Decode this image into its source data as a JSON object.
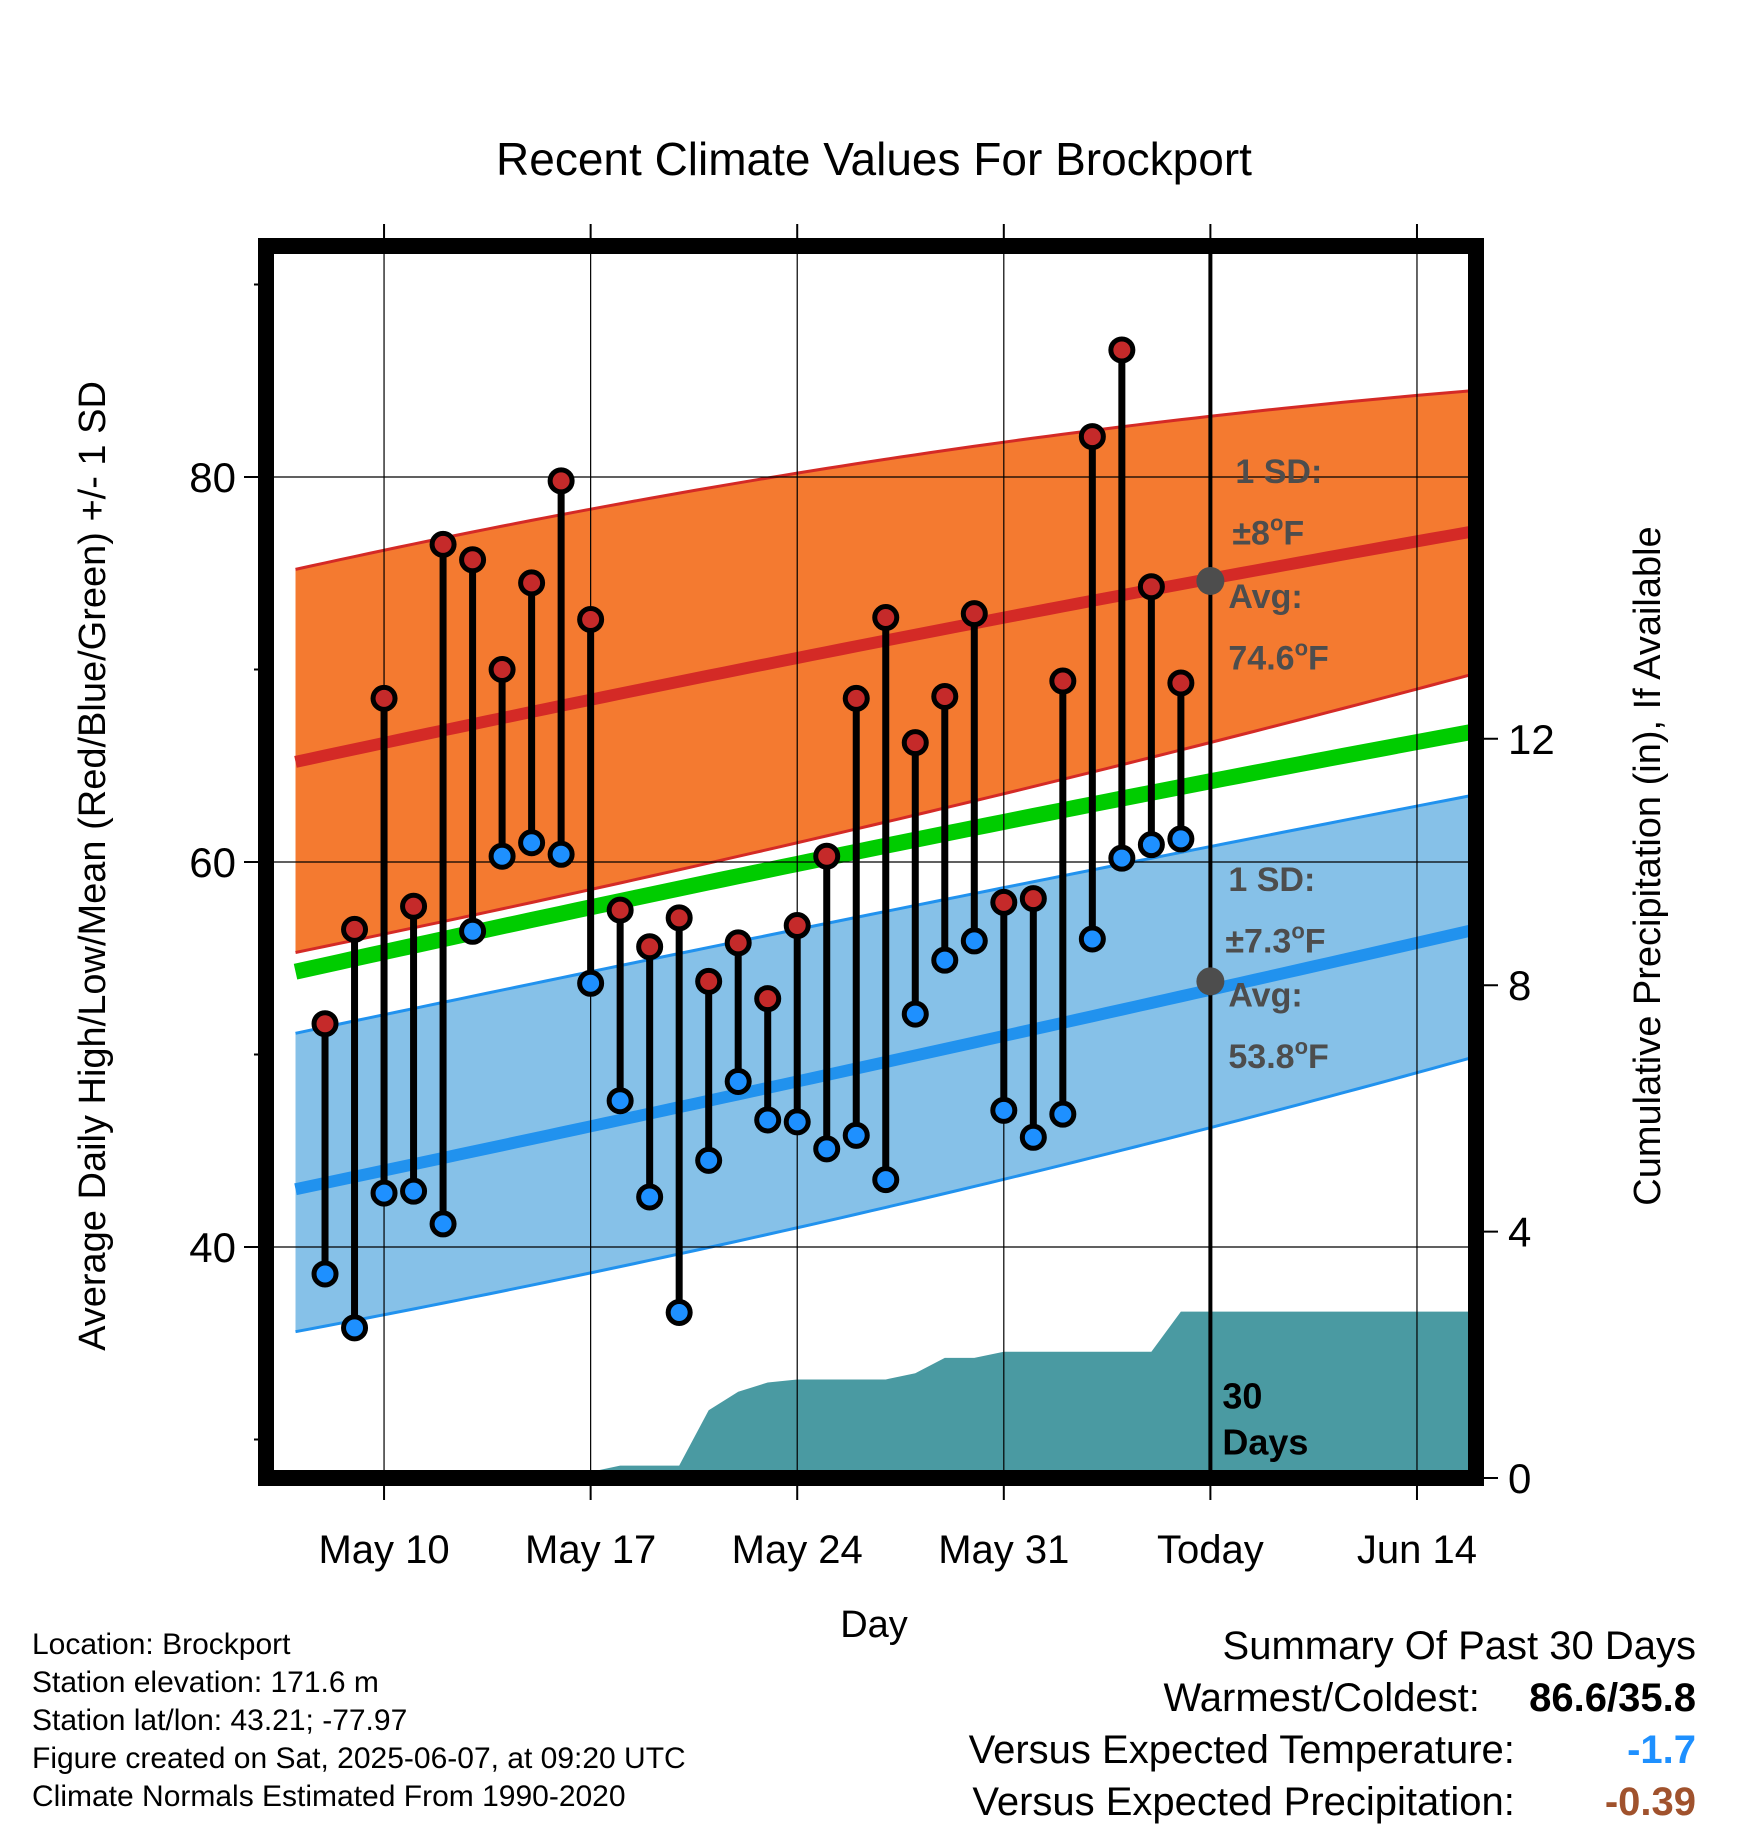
{
  "chart_data": {
    "type": "line",
    "title": "Recent Climate Values For Brockport",
    "xlabel": "Day",
    "ylabel": "Average Daily High/Low/Mean (Red/Blue/Green) +/- 1 SD",
    "y2label": "Cumulative Precipitation (in), If Available",
    "ylim": [
      28,
      92
    ],
    "y2lim": [
      0,
      20
    ],
    "xlim": [
      "2025-05-06",
      "2025-06-16"
    ],
    "x_ticks": [
      {
        "date": "2025-05-10",
        "label": "May 10"
      },
      {
        "date": "2025-05-17",
        "label": "May 17"
      },
      {
        "date": "2025-05-24",
        "label": "May 24"
      },
      {
        "date": "2025-05-31",
        "label": "May 31"
      },
      {
        "date": "2025-06-07",
        "label": "Today"
      },
      {
        "date": "2025-06-14",
        "label": "Jun 14"
      }
    ],
    "y_ticks": [
      40,
      60,
      80
    ],
    "y_minor_ticks": [
      30,
      50,
      70,
      90
    ],
    "y2_ticks": [
      0,
      4,
      8,
      12
    ],
    "grid": true,
    "colors": {
      "high_band": "#f47a30",
      "high_line": "#d42a26",
      "low_band": "#86c1e8",
      "low_line": "#2192ee",
      "mean_line": "#00cc00",
      "precip": "#4a9aa2",
      "high_dot": "#c52a2a",
      "low_dot": "#1e90ff",
      "anno": "#4d4d4d",
      "versus_temp": "#1e90ff",
      "versus_precip": "#a0522d"
    },
    "normals": {
      "high_avg": [
        {
          "date": "2025-05-07",
          "value": 65.2
        },
        {
          "date": "2025-05-24",
          "value": 70.6
        },
        {
          "date": "2025-06-16",
          "value": 77.2
        }
      ],
      "high_sd_upper": [
        {
          "date": "2025-05-07",
          "value": 75.2
        },
        {
          "date": "2025-05-24",
          "value": 80.2
        },
        {
          "date": "2025-06-16",
          "value": 84.5
        }
      ],
      "high_sd_lower": [
        {
          "date": "2025-05-07",
          "value": 55.3
        },
        {
          "date": "2025-05-24",
          "value": 61.0
        },
        {
          "date": "2025-06-16",
          "value": 69.8
        }
      ],
      "low_avg": [
        {
          "date": "2025-05-07",
          "value": 43.0
        },
        {
          "date": "2025-05-24",
          "value": 48.6
        },
        {
          "date": "2025-06-16",
          "value": 56.5
        }
      ],
      "low_sd_upper": [
        {
          "date": "2025-05-07",
          "value": 51.1
        },
        {
          "date": "2025-05-24",
          "value": 56.5
        },
        {
          "date": "2025-06-16",
          "value": 63.5
        }
      ],
      "low_sd_lower": [
        {
          "date": "2025-05-07",
          "value": 35.6
        },
        {
          "date": "2025-05-24",
          "value": 41.0
        },
        {
          "date": "2025-06-16",
          "value": 49.9
        }
      ],
      "mean": [
        {
          "date": "2025-05-07",
          "value": 54.3
        },
        {
          "date": "2025-05-24",
          "value": 59.9
        },
        {
          "date": "2025-06-16",
          "value": 66.8
        }
      ]
    },
    "daily": [
      {
        "date": "2025-05-08",
        "high": 51.6,
        "low": 38.6
      },
      {
        "date": "2025-05-09",
        "high": 56.5,
        "low": 35.8
      },
      {
        "date": "2025-05-10",
        "high": 68.5,
        "low": 42.8
      },
      {
        "date": "2025-05-11",
        "high": 57.7,
        "low": 42.9
      },
      {
        "date": "2025-05-12",
        "high": 76.5,
        "low": 41.2
      },
      {
        "date": "2025-05-13",
        "high": 75.7,
        "low": 56.4
      },
      {
        "date": "2025-05-14",
        "high": 70.0,
        "low": 60.3
      },
      {
        "date": "2025-05-15",
        "high": 74.5,
        "low": 61.0
      },
      {
        "date": "2025-05-16",
        "high": 79.8,
        "low": 60.4
      },
      {
        "date": "2025-05-17",
        "high": 72.6,
        "low": 53.7
      },
      {
        "date": "2025-05-18",
        "high": 57.5,
        "low": 47.6
      },
      {
        "date": "2025-05-19",
        "high": 55.6,
        "low": 42.6
      },
      {
        "date": "2025-05-20",
        "high": 57.1,
        "low": 36.6
      },
      {
        "date": "2025-05-21",
        "high": 53.8,
        "low": 44.5
      },
      {
        "date": "2025-05-22",
        "high": 55.8,
        "low": 48.6
      },
      {
        "date": "2025-05-23",
        "high": 52.9,
        "low": 46.6
      },
      {
        "date": "2025-05-24",
        "high": 56.7,
        "low": 46.5
      },
      {
        "date": "2025-05-25",
        "high": 60.3,
        "low": 45.1
      },
      {
        "date": "2025-05-26",
        "high": 68.5,
        "low": 45.8
      },
      {
        "date": "2025-05-27",
        "high": 72.7,
        "low": 43.5
      },
      {
        "date": "2025-05-28",
        "high": 66.2,
        "low": 52.1
      },
      {
        "date": "2025-05-29",
        "high": 68.6,
        "low": 54.9
      },
      {
        "date": "2025-05-30",
        "high": 72.9,
        "low": 55.9
      },
      {
        "date": "2025-05-31",
        "high": 57.9,
        "low": 47.1
      },
      {
        "date": "2025-06-01",
        "high": 58.1,
        "low": 45.7
      },
      {
        "date": "2025-06-02",
        "high": 69.4,
        "low": 46.9
      },
      {
        "date": "2025-06-03",
        "high": 82.1,
        "low": 56.0
      },
      {
        "date": "2025-06-04",
        "high": 86.6,
        "low": 60.2
      },
      {
        "date": "2025-06-05",
        "high": 74.3,
        "low": 60.9
      },
      {
        "date": "2025-06-06",
        "high": 69.3,
        "low": 61.2
      }
    ],
    "precip_cumulative": [
      {
        "date": "2025-05-07",
        "value": 0.0
      },
      {
        "date": "2025-05-16",
        "value": 0.0
      },
      {
        "date": "2025-05-17",
        "value": 0.1
      },
      {
        "date": "2025-05-18",
        "value": 0.2
      },
      {
        "date": "2025-05-20",
        "value": 0.2
      },
      {
        "date": "2025-05-21",
        "value": 1.1
      },
      {
        "date": "2025-05-22",
        "value": 1.4
      },
      {
        "date": "2025-05-23",
        "value": 1.55
      },
      {
        "date": "2025-05-24",
        "value": 1.6
      },
      {
        "date": "2025-05-27",
        "value": 1.6
      },
      {
        "date": "2025-05-28",
        "value": 1.7
      },
      {
        "date": "2025-05-29",
        "value": 1.95
      },
      {
        "date": "2025-05-30",
        "value": 1.95
      },
      {
        "date": "2025-05-31",
        "value": 2.05
      },
      {
        "date": "2025-06-05",
        "value": 2.05
      },
      {
        "date": "2025-06-06",
        "value": 2.7
      },
      {
        "date": "2025-06-16",
        "value": 2.7
      }
    ],
    "today_avg_high": 74.6,
    "today_avg_low": 53.8,
    "annotations": {
      "high_sd_label": "1 SD:",
      "high_sd_value": "±8°F",
      "high_avg_label": "Avg:",
      "high_avg_value": "74.6°F",
      "low_sd_label": "1 SD:",
      "low_sd_value": "±7.3°F",
      "low_avg_label": "Avg:",
      "low_avg_value": "53.8°F",
      "days_number": "30",
      "days_word": "Days"
    }
  },
  "footer": {
    "location": "Location: Brockport",
    "elevation": "Station elevation: 171.6 m",
    "latlon": "Station lat/lon: 43.21; -77.97",
    "created": "Figure created on Sat, 2025-06-07, at 09:20 UTC",
    "normals": "Climate Normals Estimated From 1990-2020"
  },
  "summary": {
    "title": "Summary Of Past 30 Days",
    "warmest_label": "Warmest/Coldest:",
    "warmest_value": "86.6/35.8",
    "temp_label": "Versus Expected Temperature:",
    "temp_value": "-1.7",
    "precip_label": "Versus Expected Precipitation:",
    "precip_value": "-0.39"
  }
}
